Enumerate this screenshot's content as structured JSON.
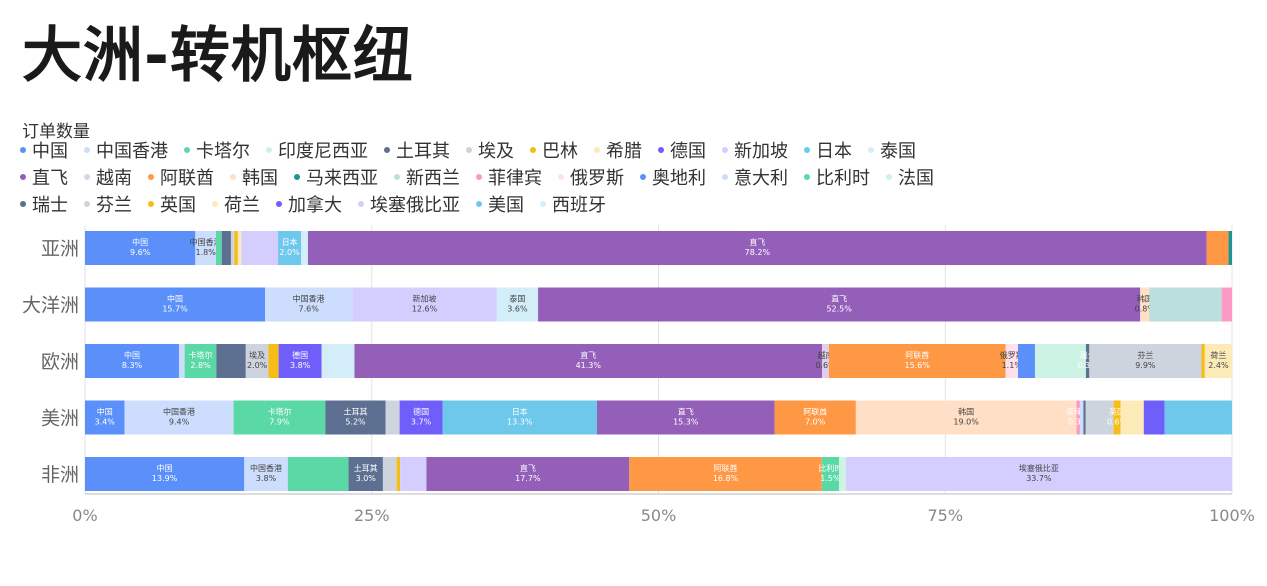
{
  "title": "大洲-转机枢纽",
  "legend_title": "订单数量",
  "chart_data": {
    "type": "bar",
    "orientation": "horizontal",
    "stacked": "percent",
    "title": "大洲-转机枢纽",
    "legend_title": "订单数量",
    "legend_position": "top-left",
    "xlim": [
      0,
      100
    ],
    "x_ticks": [
      "0%",
      "25%",
      "50%",
      "75%",
      "100%"
    ],
    "grid": true,
    "categories": [
      "亚洲",
      "大洋洲",
      "欧洲",
      "美洲",
      "非洲"
    ],
    "series": [
      {
        "name": "中国",
        "color": "#5B8FF9",
        "values": [
          9.6,
          15.7,
          8.3,
          3.4,
          13.9
        ],
        "labels": [
          "9.6%",
          "15.7%",
          "8.3%",
          "3.4%",
          "13.9%"
        ]
      },
      {
        "name": "中国香港",
        "color": "#CDDDFD",
        "values": [
          1.8,
          7.6,
          0.5,
          9.4,
          3.8
        ],
        "labels": [
          "1.8%",
          "7.6%",
          "",
          "9.4%",
          "3.8%"
        ]
      },
      {
        "name": "卡塔尔",
        "color": "#5AD8A6",
        "values": [
          0.5,
          0,
          2.8,
          7.9,
          5.3
        ],
        "labels": [
          "",
          "",
          "2.8%",
          "7.9%",
          ""
        ]
      },
      {
        "name": "印度尼西亚",
        "color": "#CDF3E4",
        "values": [
          0,
          0,
          0,
          0,
          0
        ],
        "labels": [
          "",
          "",
          "",
          "",
          ""
        ]
      },
      {
        "name": "土耳其",
        "color": "#5D7092",
        "values": [
          0.8,
          0,
          2.6,
          5.2,
          3.0
        ],
        "labels": [
          "",
          "",
          "",
          "5.2%",
          "3.0%"
        ]
      },
      {
        "name": "埃及",
        "color": "#CED4DE",
        "values": [
          0.3,
          0,
          2.0,
          1.2,
          1.2
        ],
        "labels": [
          "",
          "",
          "2.0%",
          "",
          ""
        ]
      },
      {
        "name": "巴林",
        "color": "#F6BD16",
        "values": [
          0.3,
          0,
          0.9,
          0,
          0.3
        ],
        "labels": [
          "",
          "",
          "",
          "",
          ""
        ]
      },
      {
        "name": "希腊",
        "color": "#FCEBB9",
        "values": [
          0.3,
          0,
          0,
          0,
          0
        ],
        "labels": [
          "",
          "",
          "",
          "",
          ""
        ]
      },
      {
        "name": "德国",
        "color": "#6F5EF9",
        "values": [
          0,
          0,
          3.8,
          3.7,
          0
        ],
        "labels": [
          "",
          "",
          "3.8%",
          "3.7%",
          ""
        ]
      },
      {
        "name": "新加坡",
        "color": "#D3CEFD",
        "values": [
          3.2,
          12.6,
          0,
          0,
          2.3
        ],
        "labels": [
          "",
          "12.6%",
          "",
          "",
          ""
        ]
      },
      {
        "name": "日本",
        "color": "#6DC8EC",
        "values": [
          2.0,
          0,
          0,
          13.3,
          0
        ],
        "labels": [
          "2.0%",
          "",
          "",
          "13.3%",
          ""
        ]
      },
      {
        "name": "泰国",
        "color": "#D3EEF9",
        "values": [
          0.6,
          3.6,
          2.9,
          0,
          0
        ],
        "labels": [
          "",
          "3.6%",
          "",
          "",
          ""
        ]
      },
      {
        "name": "直飞",
        "color": "#945FB9",
        "values": [
          78.2,
          52.5,
          41.3,
          15.3,
          17.7
        ],
        "labels": [
          "78.2%",
          "52.5%",
          "41.3%",
          "15.3%",
          "17.7%"
        ]
      },
      {
        "name": "越南",
        "color": "#DECFEA",
        "values": [
          0,
          0,
          0.6,
          0,
          0
        ],
        "labels": [
          "",
          "",
          "0.6%",
          "",
          ""
        ]
      },
      {
        "name": "阿联酋",
        "color": "#FF9845",
        "values": [
          1.9,
          0,
          15.6,
          7.0,
          16.8
        ],
        "labels": [
          "",
          "",
          "15.6%",
          "7.0%",
          "16.8%"
        ]
      },
      {
        "name": "韩国",
        "color": "#FFE0C7",
        "values": [
          0,
          0.8,
          0,
          19.0,
          0
        ],
        "labels": [
          "",
          "0.8%",
          "",
          "19.0%",
          ""
        ]
      },
      {
        "name": "马来西亚",
        "color": "#1E9493",
        "values": [
          0.3,
          0,
          0,
          0,
          0
        ],
        "labels": [
          "",
          "",
          "",
          "",
          ""
        ]
      },
      {
        "name": "新西兰",
        "color": "#BBDEDE",
        "values": [
          0,
          6.3,
          0,
          0,
          0
        ],
        "labels": [
          "",
          "",
          "",
          "",
          ""
        ]
      },
      {
        "name": "菲律宾",
        "color": "#FF99C3",
        "values": [
          0,
          0.9,
          0,
          0.3,
          0
        ],
        "labels": [
          "",
          "",
          "",
          "0.3%",
          ""
        ]
      },
      {
        "name": "俄罗斯",
        "color": "#FFE0ED",
        "values": [
          0,
          0,
          1.1,
          0,
          0
        ],
        "labels": [
          "",
          "",
          "1.1%",
          "",
          ""
        ]
      },
      {
        "name": "奥地利",
        "color": "#5B8FF9",
        "values": [
          0,
          0,
          1.5,
          0,
          0
        ],
        "labels": [
          "",
          "",
          "",
          "",
          ""
        ]
      },
      {
        "name": "意大利",
        "color": "#CDDDFD",
        "values": [
          0,
          0,
          0,
          0.3,
          0
        ],
        "labels": [
          "",
          "",
          "",
          "",
          ""
        ]
      },
      {
        "name": "比利时",
        "color": "#5AD8A6",
        "values": [
          0,
          0,
          0,
          0,
          1.5
        ],
        "labels": [
          "",
          "",
          "",
          "",
          "1.5%"
        ]
      },
      {
        "name": "法国",
        "color": "#CDF3E4",
        "values": [
          0,
          0,
          4.5,
          0,
          0.6
        ],
        "labels": [
          "",
          "",
          "",
          "",
          ""
        ]
      },
      {
        "name": "瑞士",
        "color": "#5D7092",
        "values": [
          0,
          0,
          0.3,
          0.2,
          0
        ],
        "labels": [
          "",
          "",
          "0.3%",
          "",
          ""
        ]
      },
      {
        "name": "芬兰",
        "color": "#CED4DE",
        "values": [
          0,
          0,
          9.9,
          2.4,
          0
        ],
        "labels": [
          "",
          "",
          "9.9%",
          "",
          ""
        ]
      },
      {
        "name": "英国",
        "color": "#F6BD16",
        "values": [
          0,
          0,
          0.3,
          0.6,
          0
        ],
        "labels": [
          "",
          "",
          "",
          "0.6%",
          ""
        ]
      },
      {
        "name": "荷兰",
        "color": "#FCEBB9",
        "values": [
          0,
          0,
          2.4,
          2.0,
          0
        ],
        "labels": [
          "",
          "",
          "2.4%",
          "",
          ""
        ]
      },
      {
        "name": "加拿大",
        "color": "#6F5EF9",
        "values": [
          0,
          0,
          0,
          1.8,
          0
        ],
        "labels": [
          "",
          "",
          "",
          "",
          ""
        ]
      },
      {
        "name": "埃塞俄比亚",
        "color": "#D3CEFD",
        "values": [
          0,
          0,
          0,
          0,
          33.7
        ],
        "labels": [
          "",
          "",
          "",
          "",
          "33.7%"
        ]
      },
      {
        "name": "美国",
        "color": "#6DC8EC",
        "values": [
          0,
          0,
          0,
          5.8,
          0
        ],
        "labels": [
          "",
          "",
          "",
          "",
          ""
        ]
      },
      {
        "name": "西班牙",
        "color": "#D3EEF9",
        "values": [
          0,
          0,
          0,
          0,
          0
        ],
        "labels": [
          "",
          "",
          "",
          "",
          ""
        ]
      }
    ]
  }
}
